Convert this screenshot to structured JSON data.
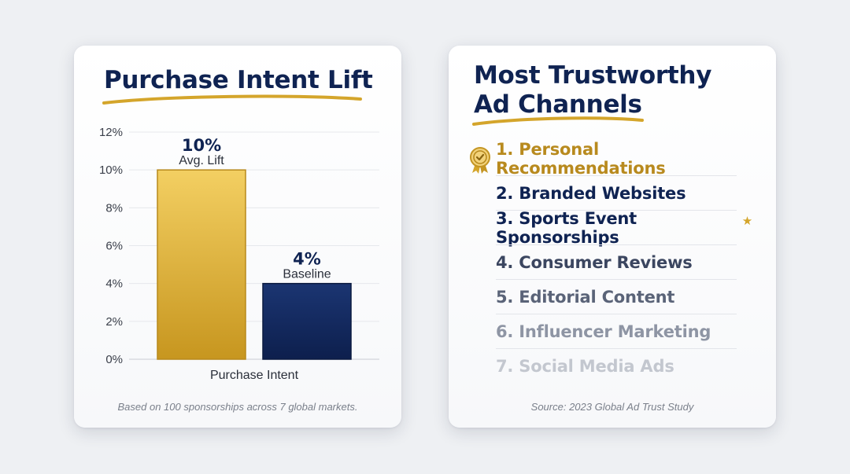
{
  "left_card": {
    "title": "Purchase Intent Lift",
    "footnote": "Based on 100 sponsorships across 7 global markets."
  },
  "right_card": {
    "title_line1": "Most Trustworthy",
    "title_line2": "Ad Channels",
    "footnote": "Source: 2023 Global Ad Trust Study",
    "items": [
      {
        "label": "1. Personal Recommendations",
        "color": "#b88a1e",
        "icon": "award-ribbon-icon"
      },
      {
        "label": "2. Branded Websites",
        "color": "#0f2352"
      },
      {
        "label": "3. Sports Event Sponsorships",
        "color": "#0f2352",
        "marker": "★"
      },
      {
        "label": "4. Consumer Reviews",
        "color": "#3b4660"
      },
      {
        "label": "5. Editorial Content",
        "color": "#5a6378"
      },
      {
        "label": "6. Influencer Marketing",
        "color": "#8e95a4"
      },
      {
        "label": "7. Social Media Ads",
        "color": "#c3c7cf"
      }
    ]
  },
  "chart_data": {
    "type": "bar",
    "categories": [
      "Avg. Lift",
      "Baseline"
    ],
    "values": [
      10,
      4
    ],
    "value_labels": [
      "10%",
      "4%"
    ],
    "xlabel": "Purchase Intent",
    "ylabel": "",
    "ylim": [
      0,
      12
    ],
    "yticks": [
      "0%",
      "2%",
      "4%",
      "6%",
      "8%",
      "10%",
      "12%"
    ],
    "grid": true,
    "colors": [
      "#d9ad34",
      "#13285e"
    ]
  }
}
